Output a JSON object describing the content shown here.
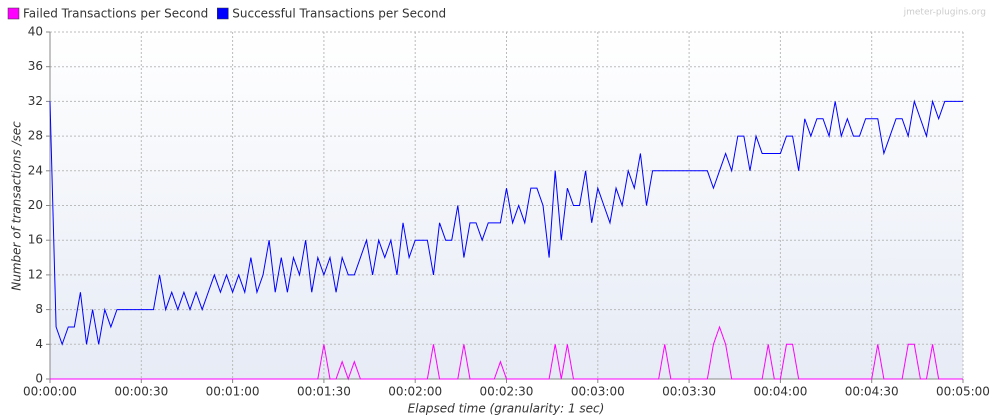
{
  "chart_data": {
    "type": "line",
    "watermark": "jmeter-plugins.org",
    "xlabel": "Elapsed time (granularity: 1 sec)",
    "ylabel": "Number of transactions /sec",
    "legend": "top-left",
    "grid": true,
    "xlim": [
      0,
      300
    ],
    "ylim": [
      0,
      40
    ],
    "yticks": [
      0,
      4,
      8,
      12,
      16,
      20,
      24,
      28,
      32,
      36,
      40
    ],
    "xticks": [
      {
        "value": 0,
        "label": "00:00:00"
      },
      {
        "value": 30,
        "label": "00:00:30"
      },
      {
        "value": 60,
        "label": "00:01:00"
      },
      {
        "value": 90,
        "label": "00:01:30"
      },
      {
        "value": 120,
        "label": "00:02:00"
      },
      {
        "value": 150,
        "label": "00:02:30"
      },
      {
        "value": 180,
        "label": "00:03:00"
      },
      {
        "value": 210,
        "label": "00:03:30"
      },
      {
        "value": 240,
        "label": "00:04:00"
      },
      {
        "value": 270,
        "label": "00:04:30"
      },
      {
        "value": 300,
        "label": "00:05:00"
      }
    ],
    "x": [
      0,
      2,
      4,
      6,
      8,
      10,
      12,
      14,
      16,
      18,
      20,
      22,
      24,
      26,
      28,
      30,
      32,
      34,
      36,
      38,
      40,
      42,
      44,
      46,
      48,
      50,
      52,
      54,
      56,
      58,
      60,
      62,
      64,
      66,
      68,
      70,
      72,
      74,
      76,
      78,
      80,
      82,
      84,
      86,
      88,
      90,
      92,
      94,
      96,
      98,
      100,
      102,
      104,
      106,
      108,
      110,
      112,
      114,
      116,
      118,
      120,
      122,
      124,
      126,
      128,
      130,
      132,
      134,
      136,
      138,
      140,
      142,
      144,
      146,
      148,
      150,
      152,
      154,
      156,
      158,
      160,
      162,
      164,
      166,
      168,
      170,
      172,
      174,
      176,
      178,
      180,
      182,
      184,
      186,
      188,
      190,
      192,
      194,
      196,
      198,
      200,
      202,
      204,
      206,
      208,
      210,
      212,
      214,
      216,
      218,
      220,
      222,
      224,
      226,
      228,
      230,
      232,
      234,
      236,
      238,
      240,
      242,
      244,
      246,
      248,
      250,
      252,
      254,
      256,
      258,
      260,
      262,
      264,
      266,
      268,
      270,
      272,
      274,
      276,
      278,
      280,
      282,
      284,
      286,
      288,
      290,
      292,
      294,
      296,
      298,
      300
    ],
    "series": [
      {
        "name": "Failed Transactions per Second",
        "color": "#ff00ff",
        "values": [
          0,
          0,
          0,
          0,
          0,
          0,
          0,
          0,
          0,
          0,
          0,
          0,
          0,
          0,
          0,
          0,
          0,
          0,
          0,
          0,
          0,
          0,
          0,
          0,
          0,
          0,
          0,
          0,
          0,
          0,
          0,
          0,
          0,
          0,
          0,
          0,
          0,
          0,
          0,
          0,
          0,
          0,
          0,
          0,
          0,
          4,
          0,
          0,
          2,
          0,
          2,
          0,
          0,
          0,
          0,
          0,
          0,
          0,
          0,
          0,
          0,
          0,
          0,
          4,
          0,
          0,
          0,
          0,
          4,
          0,
          0,
          0,
          0,
          0,
          2,
          0,
          0,
          0,
          0,
          0,
          0,
          0,
          0,
          4,
          0,
          4,
          0,
          0,
          0,
          0,
          0,
          0,
          0,
          0,
          0,
          0,
          0,
          0,
          0,
          0,
          0,
          4,
          0,
          0,
          0,
          0,
          0,
          0,
          0,
          4,
          6,
          4,
          0,
          0,
          0,
          0,
          0,
          0,
          4,
          0,
          0,
          4,
          4,
          0,
          0,
          0,
          0,
          0,
          0,
          0,
          0,
          0,
          0,
          0,
          0,
          0,
          4,
          0,
          0,
          0,
          0,
          4,
          4,
          0,
          0,
          4,
          0,
          0,
          0,
          0,
          0
        ]
      },
      {
        "name": "Successful Transactions per Second",
        "color": "#0000ff",
        "values": [
          32,
          6,
          4,
          6,
          6,
          10,
          4,
          8,
          4,
          8,
          6,
          8,
          8,
          8,
          8,
          8,
          8,
          8,
          12,
          8,
          10,
          8,
          10,
          8,
          10,
          8,
          10,
          12,
          10,
          12,
          10,
          12,
          10,
          14,
          10,
          12,
          16,
          10,
          14,
          10,
          14,
          12,
          16,
          10,
          14,
          12,
          14,
          10,
          14,
          12,
          12,
          14,
          16,
          12,
          16,
          14,
          16,
          12,
          18,
          14,
          16,
          16,
          16,
          12,
          18,
          16,
          16,
          20,
          14,
          18,
          18,
          16,
          18,
          18,
          18,
          22,
          18,
          20,
          18,
          22,
          22,
          20,
          14,
          24,
          16,
          22,
          20,
          20,
          24,
          18,
          22,
          20,
          18,
          22,
          20,
          24,
          22,
          26,
          20,
          24,
          24,
          24,
          24,
          24,
          24,
          24,
          24,
          24,
          24,
          22,
          24,
          26,
          24,
          28,
          28,
          24,
          28,
          26,
          26,
          26,
          26,
          28,
          28,
          24,
          30,
          28,
          30,
          30,
          28,
          32,
          28,
          30,
          28,
          28,
          30,
          30,
          30,
          26,
          28,
          30,
          30,
          28,
          32,
          30,
          28,
          32,
          30,
          32,
          32,
          32,
          32
        ]
      }
    ]
  }
}
